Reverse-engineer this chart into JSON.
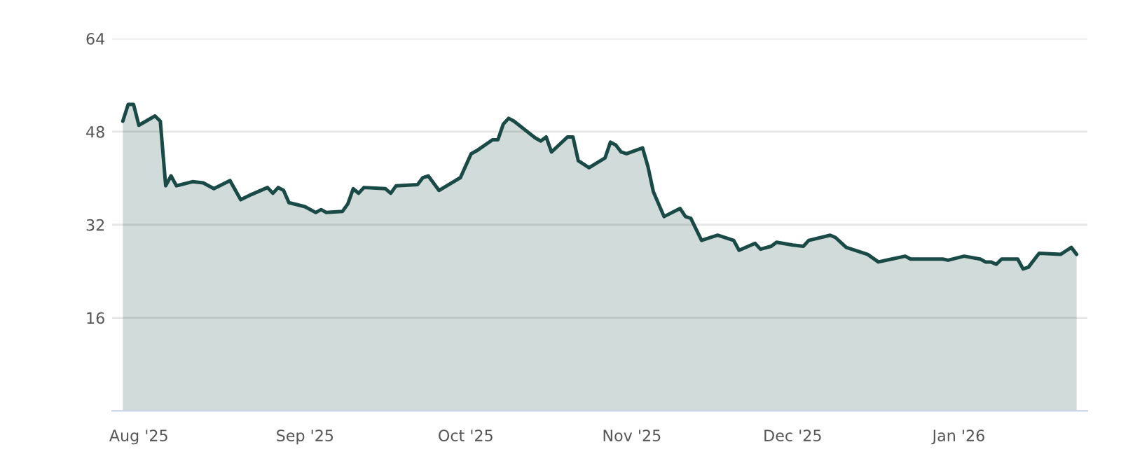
{
  "chart_data": {
    "type": "area",
    "x": [
      "2025-07-29",
      "2025-07-30",
      "2025-07-31",
      "2025-08-01",
      "2025-08-04",
      "2025-08-05",
      "2025-08-06",
      "2025-08-07",
      "2025-08-08",
      "2025-08-11",
      "2025-08-13",
      "2025-08-15",
      "2025-08-18",
      "2025-08-20",
      "2025-08-22",
      "2025-08-25",
      "2025-08-26",
      "2025-08-27",
      "2025-08-28",
      "2025-08-29",
      "2025-09-01",
      "2025-09-03",
      "2025-09-04",
      "2025-09-05",
      "2025-09-08",
      "2025-09-09",
      "2025-09-10",
      "2025-09-11",
      "2025-09-12",
      "2025-09-16",
      "2025-09-17",
      "2025-09-18",
      "2025-09-22",
      "2025-09-23",
      "2025-09-24",
      "2025-09-26",
      "2025-09-30",
      "2025-10-02",
      "2025-10-03",
      "2025-10-06",
      "2025-10-07",
      "2025-10-08",
      "2025-10-09",
      "2025-10-10",
      "2025-10-14",
      "2025-10-15",
      "2025-10-16",
      "2025-10-17",
      "2025-10-20",
      "2025-10-21",
      "2025-10-22",
      "2025-10-24",
      "2025-10-27",
      "2025-10-28",
      "2025-10-29",
      "2025-10-30",
      "2025-10-31",
      "2025-11-03",
      "2025-11-04",
      "2025-11-05",
      "2025-11-07",
      "2025-11-10",
      "2025-11-11",
      "2025-11-12",
      "2025-11-14",
      "2025-11-17",
      "2025-11-20",
      "2025-11-21",
      "2025-11-24",
      "2025-11-25",
      "2025-11-27",
      "2025-11-28",
      "2025-12-01",
      "2025-12-03",
      "2025-12-04",
      "2025-12-08",
      "2025-12-09",
      "2025-12-11",
      "2025-12-15",
      "2025-12-17",
      "2025-12-22",
      "2025-12-23",
      "2025-12-29",
      "2025-12-30",
      "2026-01-02",
      "2026-01-05",
      "2026-01-06",
      "2026-01-07",
      "2026-01-08",
      "2026-01-09",
      "2026-01-12",
      "2026-01-13",
      "2026-01-14",
      "2026-01-16",
      "2026-01-20",
      "2026-01-22",
      "2026-01-23"
    ],
    "series": [
      {
        "color": "#1a4a45",
        "values": [
          49.8,
          52.7,
          52.7,
          49.1,
          50.7,
          49.8,
          38.7,
          40.4,
          38.7,
          39.4,
          39.2,
          38.2,
          39.6,
          36.3,
          37.2,
          38.4,
          37.4,
          38.4,
          37.9,
          35.8,
          35.1,
          34.1,
          34.6,
          34.1,
          34.3,
          35.6,
          38.2,
          37.4,
          38.4,
          38.2,
          37.4,
          38.7,
          38.9,
          40.1,
          40.4,
          37.9,
          40.1,
          44.2,
          44.7,
          46.6,
          46.6,
          49.3,
          50.3,
          49.8,
          46.9,
          46.4,
          47.1,
          44.5,
          47.1,
          47.1,
          43.0,
          41.8,
          43.5,
          46.2,
          45.7,
          44.5,
          44.2,
          45.2,
          42.0,
          37.7,
          33.4,
          34.8,
          33.4,
          33.1,
          29.3,
          30.2,
          29.3,
          27.6,
          28.8,
          27.8,
          28.3,
          29.0,
          28.5,
          28.3,
          29.3,
          30.2,
          29.8,
          28.1,
          26.9,
          25.6,
          26.6,
          26.1,
          26.1,
          25.9,
          26.6,
          26.1,
          25.6,
          25.6,
          25.2,
          26.1,
          26.1,
          24.4,
          24.7,
          27.1,
          26.9,
          28.1,
          26.9
        ]
      }
    ],
    "xlim": [
      "2025-07-27",
      "2026-01-25"
    ],
    "xticks": [
      {
        "value": "2025-08-01",
        "label": "Aug '25"
      },
      {
        "value": "2025-09-01",
        "label": "Sep '25"
      },
      {
        "value": "2025-10-01",
        "label": "Oct '25"
      },
      {
        "value": "2025-11-01",
        "label": "Nov '25"
      },
      {
        "value": "2025-12-01",
        "label": "Dec '25"
      },
      {
        "value": "2026-01-01",
        "label": "Jan '26"
      }
    ],
    "ylim": [
      0,
      64
    ],
    "yticks": [
      16,
      32,
      48,
      64
    ],
    "grid": "y",
    "legend": false
  }
}
